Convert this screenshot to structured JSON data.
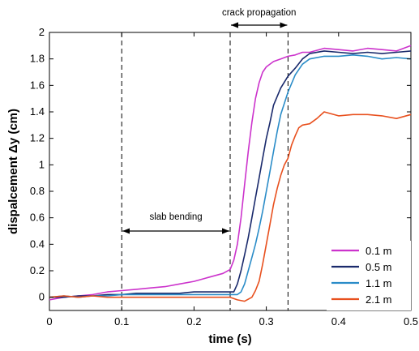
{
  "chart_data": {
    "type": "line",
    "title": "",
    "xlabel": "time (s)",
    "ylabel": "dispalcement Δy (cm)",
    "xlim": [
      0,
      0.5
    ],
    "ylim": [
      -0.1,
      2.0
    ],
    "x_ticks": [
      0,
      0.1,
      0.2,
      0.3,
      0.4,
      0.5
    ],
    "x_tick_labels": [
      "0",
      "0.1",
      "0.2",
      "0.3",
      "0.4",
      "0.5"
    ],
    "y_ticks": [
      0,
      0.2,
      0.4,
      0.6,
      0.8,
      1.0,
      1.2,
      1.4,
      1.6,
      1.8,
      2.0
    ],
    "y_tick_labels": [
      "0",
      "0.2",
      "0.4",
      "0.6",
      "0.8",
      "1",
      "1.2",
      "1.4",
      "1.6",
      "1.8",
      "2"
    ],
    "grid": false,
    "legend_position": "bottom-right",
    "series": [
      {
        "name": "0.1 m",
        "color": "#cc33cc",
        "x": [
          0,
          0.02,
          0.04,
          0.06,
          0.08,
          0.1,
          0.12,
          0.14,
          0.16,
          0.18,
          0.2,
          0.22,
          0.24,
          0.25,
          0.255,
          0.26,
          0.265,
          0.27,
          0.275,
          0.28,
          0.285,
          0.29,
          0.295,
          0.3,
          0.31,
          0.32,
          0.33,
          0.34,
          0.35,
          0.36,
          0.38,
          0.4,
          0.42,
          0.44,
          0.46,
          0.48,
          0.5
        ],
        "y": [
          -0.02,
          0.0,
          0.01,
          0.02,
          0.04,
          0.05,
          0.06,
          0.07,
          0.08,
          0.1,
          0.12,
          0.15,
          0.18,
          0.21,
          0.28,
          0.4,
          0.6,
          0.85,
          1.1,
          1.32,
          1.5,
          1.62,
          1.7,
          1.74,
          1.78,
          1.8,
          1.82,
          1.83,
          1.85,
          1.85,
          1.88,
          1.87,
          1.86,
          1.88,
          1.87,
          1.86,
          1.9
        ]
      },
      {
        "name": "0.5 m",
        "color": "#1a2a6c",
        "x": [
          0,
          0.02,
          0.04,
          0.06,
          0.08,
          0.1,
          0.12,
          0.14,
          0.16,
          0.18,
          0.2,
          0.22,
          0.24,
          0.25,
          0.255,
          0.26,
          0.265,
          0.27,
          0.275,
          0.28,
          0.285,
          0.29,
          0.295,
          0.3,
          0.305,
          0.31,
          0.32,
          0.33,
          0.34,
          0.35,
          0.36,
          0.38,
          0.4,
          0.42,
          0.44,
          0.46,
          0.48,
          0.5
        ],
        "y": [
          0.0,
          0.0,
          0.01,
          0.01,
          0.02,
          0.02,
          0.03,
          0.03,
          0.03,
          0.03,
          0.04,
          0.04,
          0.04,
          0.04,
          0.04,
          0.1,
          0.2,
          0.32,
          0.45,
          0.6,
          0.75,
          0.9,
          1.05,
          1.2,
          1.32,
          1.45,
          1.58,
          1.67,
          1.73,
          1.8,
          1.84,
          1.86,
          1.85,
          1.84,
          1.85,
          1.84,
          1.85,
          1.86
        ]
      },
      {
        "name": "1.1 m",
        "color": "#2a8cc8",
        "x": [
          0,
          0.02,
          0.04,
          0.06,
          0.08,
          0.1,
          0.12,
          0.14,
          0.16,
          0.18,
          0.2,
          0.22,
          0.24,
          0.25,
          0.26,
          0.265,
          0.27,
          0.275,
          0.28,
          0.285,
          0.29,
          0.295,
          0.3,
          0.305,
          0.31,
          0.315,
          0.32,
          0.33,
          0.34,
          0.35,
          0.36,
          0.38,
          0.4,
          0.42,
          0.44,
          0.46,
          0.48,
          0.5
        ],
        "y": [
          0.0,
          0.01,
          0.0,
          0.01,
          0.01,
          0.02,
          0.02,
          0.02,
          0.02,
          0.02,
          0.02,
          0.02,
          0.02,
          0.02,
          0.02,
          0.04,
          0.1,
          0.2,
          0.3,
          0.4,
          0.52,
          0.65,
          0.8,
          0.95,
          1.1,
          1.25,
          1.38,
          1.55,
          1.68,
          1.76,
          1.8,
          1.82,
          1.82,
          1.83,
          1.82,
          1.8,
          1.81,
          1.8
        ]
      },
      {
        "name": "2.1 m",
        "color": "#e8501e",
        "x": [
          0,
          0.02,
          0.04,
          0.06,
          0.08,
          0.1,
          0.12,
          0.14,
          0.16,
          0.18,
          0.2,
          0.22,
          0.24,
          0.25,
          0.26,
          0.27,
          0.28,
          0.285,
          0.29,
          0.295,
          0.3,
          0.305,
          0.31,
          0.315,
          0.32,
          0.325,
          0.33,
          0.335,
          0.34,
          0.345,
          0.35,
          0.36,
          0.37,
          0.38,
          0.4,
          0.42,
          0.44,
          0.46,
          0.48,
          0.5
        ],
        "y": [
          0.0,
          0.01,
          0.0,
          0.01,
          0.0,
          0.0,
          0.0,
          0.0,
          0.0,
          0.0,
          0.0,
          0.0,
          0.0,
          0.0,
          -0.02,
          -0.03,
          0.0,
          0.05,
          0.12,
          0.25,
          0.4,
          0.55,
          0.7,
          0.82,
          0.92,
          1.0,
          1.05,
          1.15,
          1.22,
          1.28,
          1.3,
          1.31,
          1.35,
          1.4,
          1.37,
          1.38,
          1.38,
          1.37,
          1.35,
          1.38
        ]
      }
    ],
    "annotations": {
      "vlines_x": [
        0.1,
        0.25,
        0.33
      ],
      "slab_bending": {
        "text": "slab bending",
        "x_start": 0.1,
        "x_end": 0.25,
        "y": 0.5
      },
      "crack_propagation": {
        "text": "crack propagation",
        "x_start": 0.25,
        "x_end": 0.33
      }
    }
  }
}
